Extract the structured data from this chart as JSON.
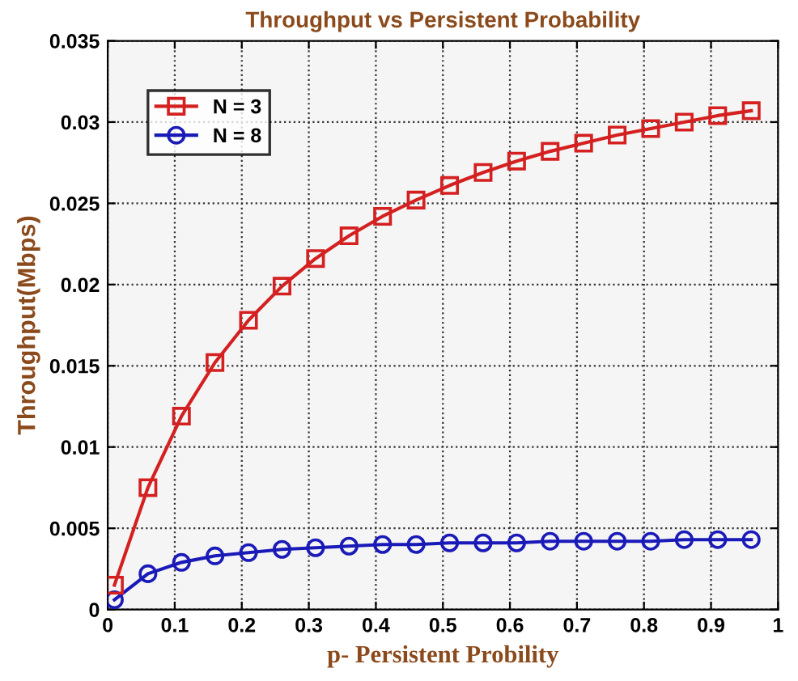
{
  "chart_data": {
    "type": "line",
    "title": "Throughput vs Persistent Probability",
    "xlabel": "p- Persistent Probility",
    "ylabel": "Throughput(Mbps)",
    "x": [
      0.01,
      0.06,
      0.11,
      0.16,
      0.21,
      0.26,
      0.31,
      0.36,
      0.41,
      0.46,
      0.51,
      0.56,
      0.61,
      0.66,
      0.71,
      0.76,
      0.81,
      0.86,
      0.91,
      0.96
    ],
    "series": [
      {
        "name": "N = 3",
        "color": "#d42020",
        "marker": "square",
        "values": [
          0.0015,
          0.0075,
          0.0119,
          0.0152,
          0.0178,
          0.0199,
          0.0216,
          0.023,
          0.0242,
          0.0252,
          0.0261,
          0.0269,
          0.0276,
          0.0282,
          0.0287,
          0.0292,
          0.0296,
          0.03,
          0.0304,
          0.0307
        ]
      },
      {
        "name": "N = 8",
        "color": "#1a1ab8",
        "marker": "circle",
        "values": [
          0.0006,
          0.0022,
          0.0029,
          0.0033,
          0.0035,
          0.0037,
          0.0038,
          0.0039,
          0.004,
          0.004,
          0.0041,
          0.0041,
          0.0041,
          0.0042,
          0.0042,
          0.0042,
          0.0042,
          0.0043,
          0.0043,
          0.0043
        ]
      }
    ],
    "xlim": [
      0,
      1
    ],
    "xticks": [
      0,
      0.1,
      0.2,
      0.3,
      0.4,
      0.5,
      0.6,
      0.7,
      0.8,
      0.9,
      1
    ],
    "ylim": [
      0,
      0.035
    ],
    "yticks": [
      0,
      0.005,
      0.01,
      0.015,
      0.02,
      0.025,
      0.03,
      0.035
    ],
    "grid": true,
    "legend": "top left",
    "line_style": "solid"
  }
}
